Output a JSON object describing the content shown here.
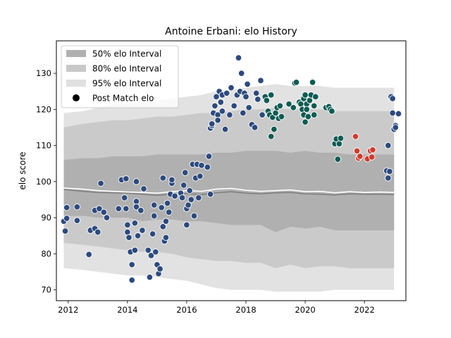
{
  "chart_data": {
    "type": "scatter",
    "title": "Antoine Erbani: elo History",
    "xlabel": "",
    "ylabel": "elo score",
    "xlim": [
      2011.6,
      2023.4
    ],
    "ylim": [
      67,
      139
    ],
    "xticks": [
      2012,
      2014,
      2016,
      2018,
      2020,
      2022
    ],
    "yticks": [
      70,
      80,
      90,
      100,
      110,
      120,
      130
    ],
    "grid": false,
    "legend_position": "top-left",
    "legend": [
      {
        "label": "50% elo Interval",
        "kind": "band",
        "color": "#b0b0b0"
      },
      {
        "label": "80% elo Interval",
        "kind": "band",
        "color": "#c8c8c8"
      },
      {
        "label": "95% elo Interval",
        "kind": "band",
        "color": "#e0e0e0"
      },
      {
        "label": "Post Match elo",
        "kind": "marker",
        "color": "#000000"
      }
    ],
    "colors": {
      "band50": "#b0b0b0",
      "band80": "#cacaca",
      "band95": "#e2e2e2",
      "median_line": "#808080",
      "mean_line": "#ffffff",
      "navy": "#2c4a7e",
      "teal": "#0d5b52",
      "red": "#d23a2e"
    },
    "bands": {
      "x": [
        2011.85,
        2012.5,
        2013.0,
        2013.5,
        2014.0,
        2014.5,
        2015.0,
        2015.5,
        2016.0,
        2016.5,
        2017.0,
        2017.5,
        2018.0,
        2018.5,
        2019.0,
        2019.5,
        2020.0,
        2020.5,
        2021.0,
        2021.5,
        2022.0,
        2022.5,
        2023.0
      ],
      "median": [
        97.8,
        97.3,
        97.0,
        96.9,
        96.8,
        96.5,
        96.2,
        96.5,
        96.7,
        96.4,
        96.9,
        97.2,
        96.8,
        96.6,
        96.9,
        97.0,
        96.6,
        96.5,
        96.3,
        96.6,
        96.5,
        96.5,
        96.4
      ],
      "mean": [
        98.2,
        97.9,
        97.5,
        97.3,
        97.1,
        97.0,
        96.8,
        97.2,
        97.5,
        97.3,
        97.9,
        98.1,
        97.6,
        97.3,
        97.5,
        97.7,
        97.2,
        97.3,
        96.9,
        97.2,
        97.0,
        97.1,
        97.0
      ],
      "p50_low": [
        90.5,
        90.5,
        90.0,
        90.0,
        90.0,
        89.0,
        89.5,
        89.5,
        89.0,
        89.0,
        88.5,
        88.0,
        88.0,
        88.0,
        86.0,
        87.5,
        87.0,
        87.5,
        86.5,
        86.5,
        86.5,
        86.5,
        86.5
      ],
      "p50_high": [
        106.0,
        106.5,
        106.5,
        107.0,
        107.0,
        107.0,
        107.5,
        107.5,
        107.5,
        107.5,
        108.0,
        108.0,
        108.5,
        108.5,
        108.5,
        108.0,
        108.5,
        108.0,
        108.0,
        107.5,
        107.5,
        107.5,
        107.5
      ],
      "p80_low": [
        83.0,
        82.5,
        82.0,
        81.5,
        81.0,
        80.5,
        80.5,
        80.0,
        79.0,
        78.5,
        78.0,
        78.0,
        77.5,
        77.5,
        76.0,
        77.0,
        76.0,
        76.5,
        76.5,
        76.0,
        76.0,
        76.0,
        76.0
      ],
      "p80_high": [
        115.0,
        116.0,
        116.5,
        117.0,
        117.0,
        117.5,
        118.0,
        118.0,
        118.5,
        119.0,
        119.0,
        119.5,
        120.0,
        120.0,
        120.5,
        120.0,
        120.0,
        120.0,
        119.5,
        119.5,
        119.5,
        119.5,
        119.5
      ],
      "p95_low": [
        76.0,
        75.5,
        75.0,
        74.5,
        74.0,
        74.0,
        73.5,
        73.0,
        72.5,
        71.5,
        70.5,
        70.0,
        70.0,
        70.0,
        69.5,
        69.5,
        69.5,
        69.5,
        70.0,
        70.0,
        70.0,
        70.0,
        70.0
      ],
      "p95_high": [
        119.0,
        119.5,
        120.5,
        121.5,
        121.5,
        122.0,
        122.5,
        123.0,
        123.5,
        124.0,
        125.0,
        125.5,
        126.0,
        126.5,
        127.0,
        126.5,
        126.5,
        126.5,
        126.0,
        126.0,
        126.0,
        126.0,
        126.0
      ]
    },
    "series": [
      {
        "color": "navy",
        "points": [
          [
            2011.85,
            89.0
          ],
          [
            2011.9,
            86.3
          ],
          [
            2011.95,
            89.8
          ],
          [
            2011.95,
            92.8
          ],
          [
            2012.3,
            93.0
          ],
          [
            2012.3,
            89.2
          ],
          [
            2012.7,
            79.8
          ],
          [
            2012.75,
            86.5
          ],
          [
            2012.9,
            92.0
          ],
          [
            2012.9,
            87.0
          ],
          [
            2013.0,
            86.0
          ],
          [
            2013.05,
            92.5
          ],
          [
            2013.1,
            99.5
          ],
          [
            2013.2,
            91.5
          ],
          [
            2013.3,
            90.0
          ],
          [
            2013.7,
            92.5
          ],
          [
            2013.8,
            100.5
          ],
          [
            2013.9,
            95.5
          ],
          [
            2013.95,
            100.8
          ],
          [
            2013.95,
            92.5
          ],
          [
            2014.0,
            88.0
          ],
          [
            2014.0,
            86.0
          ],
          [
            2014.05,
            84.5
          ],
          [
            2014.1,
            80.5
          ],
          [
            2014.15,
            77.0
          ],
          [
            2014.15,
            72.7
          ],
          [
            2014.25,
            81.0
          ],
          [
            2014.25,
            88.5
          ],
          [
            2014.3,
            94.5
          ],
          [
            2014.3,
            93.0
          ],
          [
            2014.3,
            100.0
          ],
          [
            2014.35,
            85.0
          ],
          [
            2014.45,
            92.0
          ],
          [
            2014.5,
            86.5
          ],
          [
            2014.55,
            98.0
          ],
          [
            2014.7,
            81.0
          ],
          [
            2014.75,
            73.5
          ],
          [
            2014.8,
            79.5
          ],
          [
            2014.85,
            85.5
          ],
          [
            2014.9,
            90.5
          ],
          [
            2014.9,
            93.5
          ],
          [
            2014.95,
            80.5
          ],
          [
            2015.0,
            77.0
          ],
          [
            2015.05,
            74.5
          ],
          [
            2015.1,
            75.8
          ],
          [
            2015.15,
            92.8
          ],
          [
            2015.2,
            101.0
          ],
          [
            2015.2,
            87.5
          ],
          [
            2015.25,
            83.5
          ],
          [
            2015.3,
            84.5
          ],
          [
            2015.3,
            89.0
          ],
          [
            2015.35,
            94.0
          ],
          [
            2015.4,
            91.5
          ],
          [
            2015.45,
            96.5
          ],
          [
            2015.5,
            99.5
          ],
          [
            2015.5,
            100.5
          ],
          [
            2015.6,
            96.0
          ],
          [
            2015.8,
            96.8
          ],
          [
            2015.85,
            95.5
          ],
          [
            2015.9,
            99.0
          ],
          [
            2015.95,
            102.5
          ],
          [
            2016.0,
            92.5
          ],
          [
            2016.0,
            88.0
          ],
          [
            2016.05,
            93.5
          ],
          [
            2016.1,
            97.5
          ],
          [
            2016.15,
            95.0
          ],
          [
            2016.2,
            104.8
          ],
          [
            2016.25,
            90.5
          ],
          [
            2016.3,
            101.0
          ],
          [
            2016.35,
            104.8
          ],
          [
            2016.4,
            95.5
          ],
          [
            2016.45,
            101.5
          ],
          [
            2016.5,
            104.5
          ],
          [
            2016.7,
            104.0
          ],
          [
            2016.75,
            107.0
          ],
          [
            2016.8,
            114.8
          ],
          [
            2016.8,
            96.5
          ],
          [
            2016.85,
            115.5
          ],
          [
            2016.85,
            116.0
          ],
          [
            2016.9,
            119.0
          ],
          [
            2016.95,
            121.0
          ],
          [
            2017.0,
            123.5
          ],
          [
            2017.05,
            118.5
          ],
          [
            2017.05,
            117.0
          ],
          [
            2017.1,
            125.0
          ],
          [
            2017.15,
            122.0
          ],
          [
            2017.2,
            124.0
          ],
          [
            2017.2,
            119.5
          ],
          [
            2017.3,
            114.5
          ],
          [
            2017.35,
            124.5
          ],
          [
            2017.45,
            118.5
          ],
          [
            2017.5,
            126.0
          ],
          [
            2017.6,
            121.0
          ],
          [
            2017.7,
            124.0
          ],
          [
            2017.75,
            134.3
          ],
          [
            2017.8,
            125.0
          ],
          [
            2017.85,
            130.0
          ],
          [
            2017.9,
            119.0
          ],
          [
            2017.95,
            124.5
          ],
          [
            2018.0,
            123.5
          ],
          [
            2018.05,
            127.0
          ],
          [
            2018.1,
            120.5
          ],
          [
            2018.2,
            115.8
          ],
          [
            2018.3,
            115.0
          ],
          [
            2018.35,
            124.5
          ],
          [
            2018.4,
            122.8
          ],
          [
            2018.5,
            128.0
          ],
          [
            2018.55,
            118.5
          ],
          [
            2022.75,
            103.0
          ],
          [
            2022.8,
            101.0
          ],
          [
            2022.8,
            110.0
          ],
          [
            2022.85,
            102.8
          ],
          [
            2022.9,
            123.5
          ],
          [
            2022.95,
            123.0
          ],
          [
            2022.95,
            119.0
          ],
          [
            2023.0,
            114.5
          ],
          [
            2023.05,
            115.5
          ],
          [
            2023.05,
            115.0
          ],
          [
            2023.15,
            118.8
          ]
        ]
      },
      {
        "color": "teal",
        "points": [
          [
            2018.65,
            123.5
          ],
          [
            2018.7,
            122.5
          ],
          [
            2018.75,
            119.5
          ],
          [
            2018.8,
            118.5
          ],
          [
            2018.85,
            112.5
          ],
          [
            2018.85,
            124.0
          ],
          [
            2018.9,
            117.8
          ],
          [
            2018.95,
            114.5
          ],
          [
            2019.0,
            119.0
          ],
          [
            2019.05,
            120.5
          ],
          [
            2019.1,
            117.5
          ],
          [
            2019.15,
            121.0
          ],
          [
            2019.2,
            118.0
          ],
          [
            2019.45,
            121.5
          ],
          [
            2019.6,
            120.5
          ],
          [
            2019.65,
            127.3
          ],
          [
            2019.7,
            127.5
          ],
          [
            2019.8,
            122.0
          ],
          [
            2019.85,
            121.5
          ],
          [
            2019.9,
            120.0
          ],
          [
            2019.95,
            123.0
          ],
          [
            2019.95,
            118.5
          ],
          [
            2020.0,
            116.5
          ],
          [
            2020.0,
            124.0
          ],
          [
            2020.05,
            121.5
          ],
          [
            2020.05,
            120.0
          ],
          [
            2020.1,
            118.0
          ],
          [
            2020.15,
            122.5
          ],
          [
            2020.2,
            124.0
          ],
          [
            2020.25,
            127.5
          ],
          [
            2020.3,
            118.5
          ],
          [
            2020.3,
            121.0
          ],
          [
            2020.35,
            123.5
          ],
          [
            2020.7,
            120.5
          ],
          [
            2020.8,
            120.8
          ],
          [
            2020.85,
            120.0
          ],
          [
            2020.9,
            119.5
          ],
          [
            2021.0,
            110.5
          ],
          [
            2021.05,
            111.8
          ],
          [
            2021.1,
            106.2
          ],
          [
            2021.15,
            110.5
          ],
          [
            2021.2,
            112.0
          ]
        ]
      },
      {
        "color": "red",
        "points": [
          [
            2021.7,
            112.5
          ],
          [
            2021.75,
            108.5
          ],
          [
            2021.8,
            106.5
          ],
          [
            2021.85,
            107.0
          ],
          [
            2022.1,
            106.3
          ],
          [
            2022.2,
            108.5
          ],
          [
            2022.25,
            106.8
          ],
          [
            2022.28,
            108.8
          ]
        ]
      }
    ]
  }
}
